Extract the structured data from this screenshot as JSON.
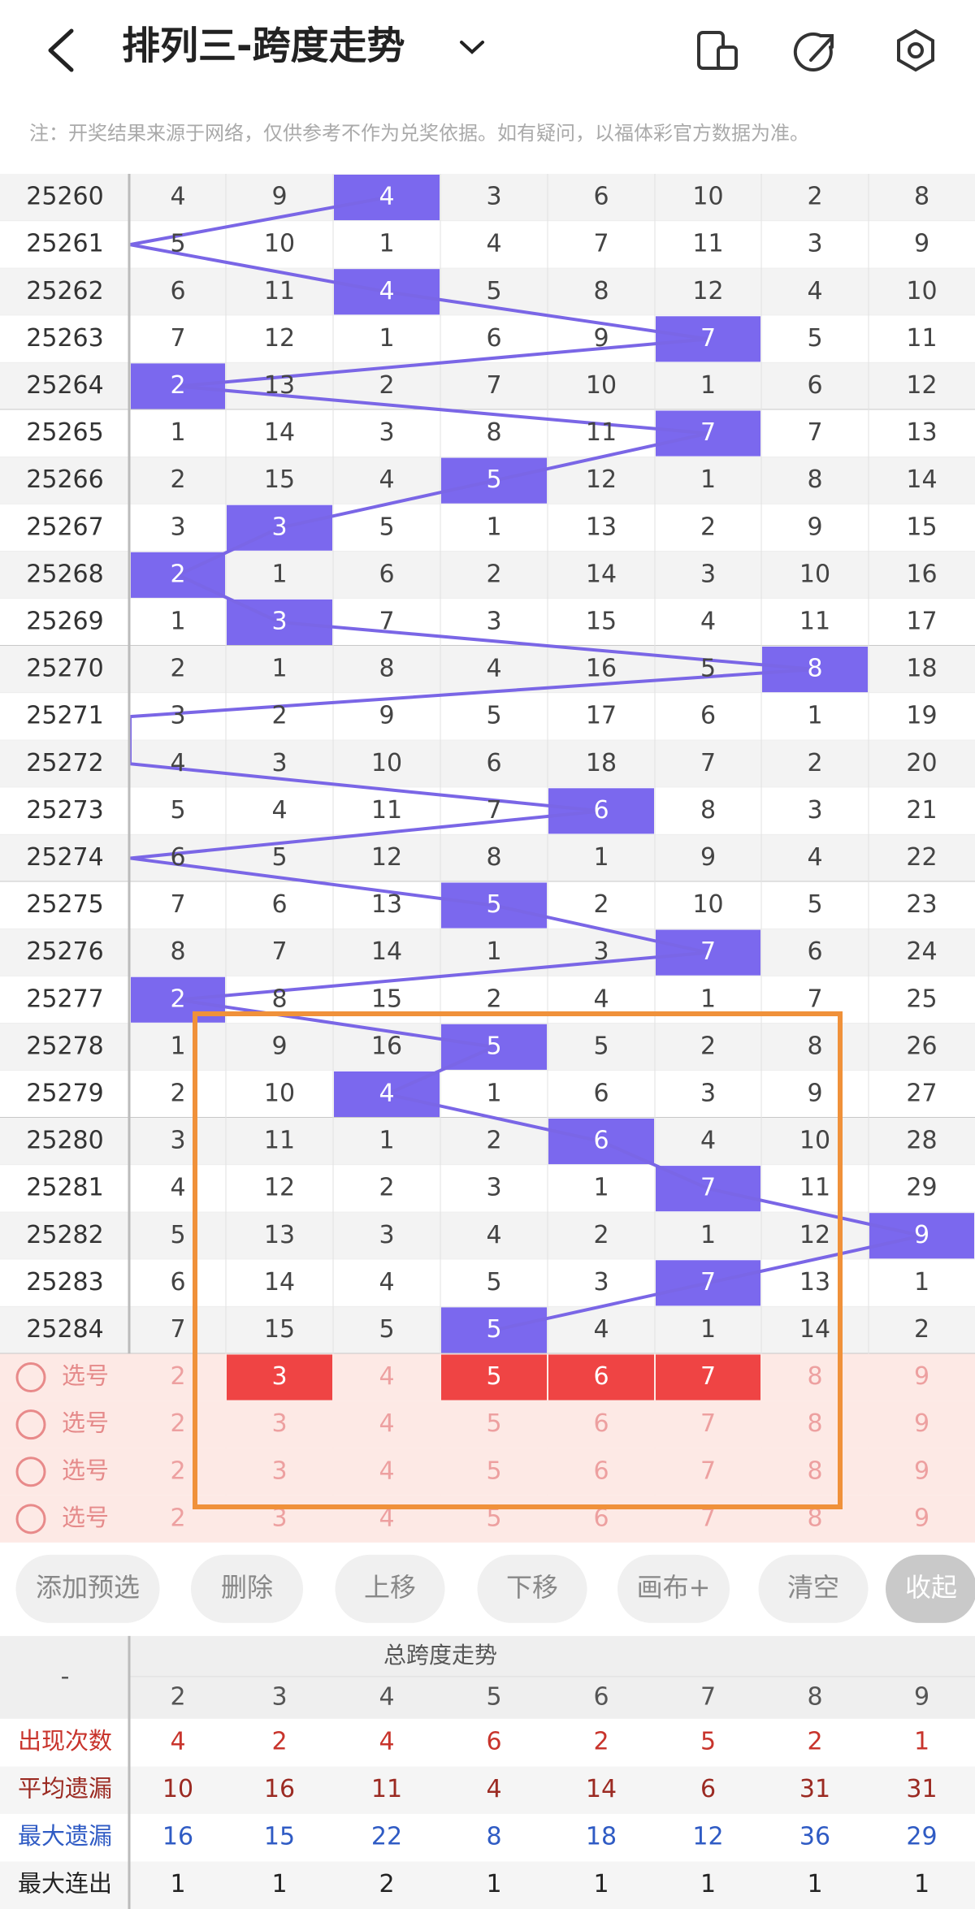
{
  "header": {
    "title": "排列三-跨度走势",
    "note": "注：开奖结果来源于网络，仅供参考不作为兑奖依据。如有疑问，以福体彩官方数据为准。"
  },
  "trend": {
    "rows": [
      {
        "issue": "25260",
        "cells": [
          4,
          9,
          {
            "value": 4,
            "highlight": true
          },
          3,
          6,
          10,
          2,
          8
        ]
      },
      {
        "issue": "25261",
        "cells": [
          5,
          10,
          1,
          4,
          7,
          11,
          3,
          9
        ]
      },
      {
        "issue": "25262",
        "cells": [
          6,
          11,
          {
            "value": 4,
            "highlight": true
          },
          5,
          8,
          12,
          4,
          10
        ]
      },
      {
        "issue": "25263",
        "cells": [
          7,
          12,
          1,
          6,
          9,
          {
            "value": 7,
            "highlight": true
          },
          5,
          11
        ]
      },
      {
        "issue": "25264",
        "cells": [
          {
            "value": 2,
            "highlight": true
          },
          13,
          2,
          7,
          10,
          1,
          6,
          12
        ]
      },
      {
        "issue": "25265",
        "cells": [
          1,
          14,
          3,
          8,
          11,
          {
            "value": 7,
            "highlight": true
          },
          7,
          13
        ]
      },
      {
        "issue": "25266",
        "cells": [
          2,
          15,
          4,
          {
            "value": 5,
            "highlight": true
          },
          12,
          1,
          8,
          14
        ]
      },
      {
        "issue": "25267",
        "cells": [
          3,
          {
            "value": 3,
            "highlight": true
          },
          5,
          1,
          13,
          2,
          9,
          15
        ]
      },
      {
        "issue": "25268",
        "cells": [
          {
            "value": 2,
            "highlight": true
          },
          1,
          6,
          2,
          14,
          3,
          10,
          16
        ]
      },
      {
        "issue": "25269",
        "cells": [
          1,
          {
            "value": 3,
            "highlight": true
          },
          7,
          3,
          15,
          4,
          11,
          17
        ]
      },
      {
        "issue": "25270",
        "cells": [
          2,
          1,
          8,
          4,
          16,
          5,
          {
            "value": 8,
            "highlight": true
          },
          18
        ]
      },
      {
        "issue": "25271",
        "cells": [
          3,
          2,
          9,
          5,
          17,
          6,
          1,
          19
        ]
      },
      {
        "issue": "25272",
        "cells": [
          4,
          3,
          10,
          6,
          18,
          7,
          2,
          20
        ]
      },
      {
        "issue": "25273",
        "cells": [
          5,
          4,
          11,
          7,
          {
            "value": 6,
            "highlight": true
          },
          8,
          3,
          21
        ]
      },
      {
        "issue": "25274",
        "cells": [
          6,
          5,
          12,
          8,
          1,
          9,
          4,
          22
        ]
      },
      {
        "issue": "25275",
        "cells": [
          7,
          6,
          13,
          {
            "value": 5,
            "highlight": true
          },
          2,
          10,
          5,
          23
        ]
      },
      {
        "issue": "25276",
        "cells": [
          8,
          7,
          14,
          1,
          3,
          {
            "value": 7,
            "highlight": true
          },
          6,
          24
        ]
      },
      {
        "issue": "25277",
        "cells": [
          {
            "value": 2,
            "highlight": true
          },
          8,
          15,
          2,
          4,
          1,
          7,
          25
        ]
      },
      {
        "issue": "25278",
        "cells": [
          1,
          9,
          16,
          {
            "value": 5,
            "highlight": true
          },
          5,
          2,
          8,
          26
        ]
      },
      {
        "issue": "25279",
        "cells": [
          2,
          10,
          {
            "value": 4,
            "highlight": true
          },
          1,
          6,
          3,
          9,
          27
        ]
      },
      {
        "issue": "25280",
        "cells": [
          3,
          11,
          1,
          2,
          {
            "value": 6,
            "highlight": true
          },
          4,
          10,
          28
        ]
      },
      {
        "issue": "25281",
        "cells": [
          4,
          12,
          2,
          3,
          1,
          {
            "value": 7,
            "highlight": true
          },
          11,
          29
        ]
      },
      {
        "issue": "25282",
        "cells": [
          5,
          13,
          3,
          4,
          2,
          1,
          12,
          {
            "value": 9,
            "highlight": true
          }
        ]
      },
      {
        "issue": "25283",
        "cells": [
          6,
          14,
          4,
          5,
          3,
          {
            "value": 7,
            "highlight": true
          },
          13,
          1
        ]
      },
      {
        "issue": "25284",
        "cells": [
          7,
          15,
          5,
          {
            "value": 5,
            "highlight": true
          },
          4,
          1,
          14,
          2
        ]
      }
    ]
  },
  "selection": {
    "rows": [
      {
        "label": "选号",
        "cells": [
          2,
          {
            "value": 3,
            "selected": true
          },
          4,
          {
            "value": 5,
            "selected": true
          },
          {
            "value": 6,
            "selected": true
          },
          {
            "value": 7,
            "selected": true
          },
          8,
          9
        ]
      },
      {
        "label": "选号",
        "cells": [
          2,
          3,
          4,
          5,
          6,
          7,
          8,
          9
        ]
      },
      {
        "label": "选号",
        "cells": [
          2,
          3,
          4,
          5,
          6,
          7,
          8,
          9
        ]
      },
      {
        "label": "选号",
        "cells": [
          2,
          3,
          4,
          5,
          6,
          7,
          8,
          9
        ]
      }
    ]
  },
  "buttons": [
    "添加预选",
    "删除",
    "上移",
    "下移",
    "画布+",
    "清空",
    "收起"
  ],
  "stats": {
    "corner": "-",
    "title": "总跨度走势",
    "columns": [
      2,
      3,
      4,
      5,
      6,
      7,
      8,
      9
    ],
    "rows": [
      {
        "label": "出现次数",
        "color": "#c8342c",
        "values": [
          4,
          2,
          4,
          6,
          2,
          5,
          2,
          1
        ]
      },
      {
        "label": "平均遗漏",
        "color": "#9b2a22",
        "values": [
          10,
          16,
          11,
          4,
          14,
          6,
          31,
          31
        ]
      },
      {
        "label": "最大遗漏",
        "color": "#2f5bc4",
        "values": [
          16,
          15,
          22,
          8,
          18,
          12,
          36,
          29
        ]
      },
      {
        "label": "最大连出",
        "color": "#222222",
        "values": [
          1,
          1,
          2,
          1,
          1,
          1,
          1,
          1
        ]
      }
    ]
  }
}
